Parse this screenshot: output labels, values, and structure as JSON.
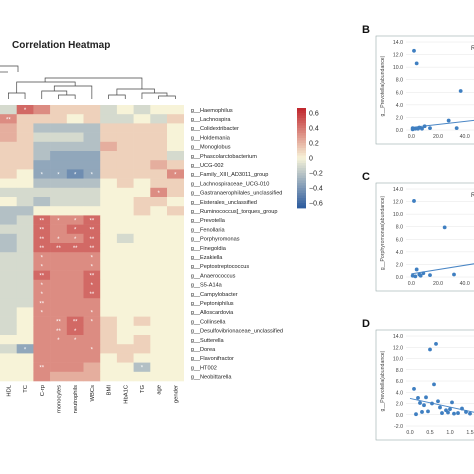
{
  "heatmap": {
    "title": "Correlation Heatmap",
    "columns": [
      "HDL",
      "TC",
      "C-rp",
      "monocytes",
      "neutrophils",
      "WBCs",
      "BMI",
      "HbA1C",
      "TG",
      "age",
      "gender"
    ],
    "rows": [
      "g__Haemophilus",
      "g__Lachnospira",
      "g__Colidextribacter",
      "g__Holdemania",
      "g__Monoglobus",
      "g__Phascolarctobacterium",
      "g__UCG-002",
      "g__Family_XIII_AD3011_group",
      "g__Lachnospiraceae_UCG-010",
      "g__Gastranaerophilales_unclassified",
      "g__Eisterales_unclassified",
      "g__Ruminococcus]_torques_group",
      "g__Prevotella",
      "g__Fenollaria",
      "g__Porphyromonas",
      "g__Finegoldia",
      "g__Ezakiella",
      "g__Peptostreptococcus",
      "g__Anaerococcus",
      "g__S5-A14a",
      "g__Campylobacter",
      "g__Peptoniphilus",
      "g__Alloscardovia",
      "g__Collinsella",
      "g__Desulfovibrionaceae_unclassified",
      "g__Sutterella",
      "g__Dorea",
      "g__Flavonifractor",
      "g__HT002",
      "g__Neobittarella"
    ],
    "values": [
      [
        -0.1,
        0.4,
        0.3,
        0.1,
        0.1,
        0.1,
        -0.1,
        0.0,
        -0.1,
        0.0,
        0.0
      ],
      [
        0.3,
        0.1,
        0.1,
        0.1,
        0.0,
        0.1,
        -0.1,
        -0.1,
        0.0,
        -0.1,
        0.1
      ],
      [
        0.2,
        0.1,
        -0.2,
        -0.2,
        -0.2,
        -0.2,
        0.1,
        0.1,
        0.1,
        0.1,
        0.0
      ],
      [
        0.2,
        0.1,
        -0.1,
        -0.1,
        -0.1,
        -0.2,
        0.1,
        0.1,
        0.1,
        0.1,
        0.0
      ],
      [
        0.1,
        0.1,
        -0.2,
        -0.2,
        -0.2,
        -0.2,
        0.2,
        0.1,
        0.1,
        0.1,
        0.0
      ],
      [
        0.1,
        0.1,
        -0.2,
        -0.3,
        -0.3,
        -0.3,
        0.1,
        0.1,
        0.1,
        0.1,
        -0.1
      ],
      [
        0.1,
        0.1,
        -0.3,
        -0.3,
        -0.3,
        -0.3,
        0.1,
        0.1,
        0.1,
        0.2,
        0.1
      ],
      [
        0.1,
        0.0,
        -0.3,
        -0.3,
        -0.4,
        -0.3,
        0.1,
        0.1,
        0.1,
        0.1,
        0.3
      ],
      [
        0.0,
        0.0,
        -0.2,
        -0.2,
        -0.2,
        -0.2,
        0.0,
        0.1,
        0.0,
        0.1,
        0.1
      ],
      [
        -0.1,
        -0.1,
        -0.1,
        -0.1,
        -0.1,
        -0.1,
        0.0,
        0.0,
        0.0,
        0.3,
        0.1
      ],
      [
        0.0,
        -0.1,
        -0.2,
        -0.1,
        -0.1,
        -0.1,
        0.0,
        0.0,
        0.1,
        0.1,
        0.0
      ],
      [
        -0.2,
        -0.2,
        0.0,
        0.0,
        0.0,
        0.0,
        0.0,
        0.0,
        0.1,
        0.0,
        0.1
      ],
      [
        -0.2,
        -0.1,
        0.4,
        0.3,
        0.3,
        0.4,
        0.0,
        0.0,
        0.0,
        0.0,
        0.0
      ],
      [
        -0.1,
        -0.1,
        0.4,
        0.3,
        0.4,
        0.4,
        0.0,
        0.0,
        0.0,
        0.0,
        0.0
      ],
      [
        -0.2,
        -0.1,
        0.4,
        0.3,
        0.3,
        0.4,
        0.0,
        -0.1,
        0.0,
        0.0,
        0.0
      ],
      [
        -0.2,
        -0.1,
        0.4,
        0.4,
        0.4,
        0.4,
        0.0,
        0.0,
        0.0,
        0.0,
        0.0
      ],
      [
        -0.1,
        -0.1,
        0.3,
        0.3,
        0.3,
        0.3,
        0.0,
        0.0,
        0.0,
        0.0,
        0.0
      ],
      [
        -0.1,
        -0.1,
        0.3,
        0.3,
        0.3,
        0.3,
        0.0,
        0.0,
        0.0,
        0.0,
        0.0
      ],
      [
        -0.1,
        -0.1,
        0.4,
        0.3,
        0.3,
        0.4,
        0.0,
        0.0,
        0.0,
        0.0,
        0.0
      ],
      [
        -0.1,
        -0.1,
        0.3,
        0.3,
        0.3,
        0.4,
        0.0,
        0.0,
        0.0,
        0.0,
        0.0
      ],
      [
        -0.1,
        -0.1,
        0.3,
        0.3,
        0.3,
        0.4,
        0.0,
        0.0,
        0.0,
        0.0,
        0.0
      ],
      [
        -0.1,
        -0.1,
        0.3,
        0.3,
        0.3,
        0.3,
        0.0,
        0.0,
        0.0,
        0.0,
        0.0
      ],
      [
        -0.1,
        0.0,
        0.3,
        0.3,
        0.3,
        0.3,
        0.0,
        0.0,
        0.0,
        0.0,
        0.0
      ],
      [
        -0.1,
        0.0,
        0.3,
        0.3,
        0.4,
        0.3,
        0.1,
        0.0,
        0.1,
        0.0,
        0.0
      ],
      [
        -0.1,
        0.0,
        0.3,
        0.3,
        0.4,
        0.3,
        0.1,
        0.0,
        0.0,
        0.0,
        0.0
      ],
      [
        0.0,
        0.0,
        0.3,
        0.3,
        0.3,
        0.3,
        0.1,
        0.0,
        0.1,
        0.0,
        0.0
      ],
      [
        -0.1,
        -0.3,
        0.3,
        0.3,
        0.3,
        0.3,
        0.1,
        0.1,
        0.1,
        0.0,
        0.0
      ],
      [
        0.0,
        0.0,
        0.3,
        0.3,
        0.3,
        0.3,
        0.0,
        0.1,
        0.0,
        0.0,
        0.0
      ],
      [
        0.0,
        0.0,
        0.3,
        0.3,
        0.3,
        0.2,
        0.0,
        0.0,
        -0.2,
        0.0,
        0.0
      ],
      [
        0.0,
        0.0,
        0.3,
        0.2,
        0.2,
        0.2,
        0.0,
        0.0,
        0.0,
        0.0,
        0.0
      ]
    ],
    "significance": [
      [
        "",
        "*",
        "",
        "",
        "",
        "",
        "",
        "",
        "",
        "",
        ""
      ],
      [
        "**",
        "",
        "",
        "",
        "",
        "",
        "",
        "",
        "",
        "",
        ""
      ],
      [
        "",
        "",
        "",
        "",
        "",
        "",
        "",
        "",
        "",
        "",
        ""
      ],
      [
        "",
        "",
        "",
        "",
        "",
        "",
        "",
        "",
        "",
        "",
        ""
      ],
      [
        "",
        "",
        "",
        "",
        "",
        "",
        "",
        "",
        "",
        "",
        ""
      ],
      [
        "",
        "",
        "",
        "",
        "",
        "",
        "",
        "",
        "",
        "",
        ""
      ],
      [
        "",
        "",
        "",
        "",
        "",
        "",
        "",
        "",
        "",
        "",
        ""
      ],
      [
        "",
        "",
        "*",
        "*",
        "*",
        "*",
        "",
        "",
        "",
        "",
        "*"
      ],
      [
        "",
        "",
        "",
        "",
        "",
        "",
        "",
        "",
        "",
        "",
        ""
      ],
      [
        "",
        "",
        "",
        "",
        "",
        "",
        "",
        "",
        "",
        "*",
        ""
      ],
      [
        "",
        "",
        "",
        "",
        "",
        "",
        "",
        "",
        "",
        "",
        ""
      ],
      [
        "",
        "",
        "",
        "",
        "",
        "",
        "",
        "",
        "",
        "",
        ""
      ],
      [
        "",
        "",
        "**",
        "*",
        "*",
        "**",
        "",
        "",
        "",
        "",
        ""
      ],
      [
        "",
        "",
        "**",
        "",
        "*",
        "**",
        "",
        "",
        "",
        "",
        ""
      ],
      [
        "",
        "",
        "**",
        "*",
        "*",
        "**",
        "",
        "",
        "",
        "",
        ""
      ],
      [
        "",
        "",
        "**",
        "**",
        "**",
        "**",
        "",
        "",
        "",
        "",
        ""
      ],
      [
        "",
        "",
        "*",
        "",
        "",
        "*",
        "",
        "",
        "",
        "",
        ""
      ],
      [
        "",
        "",
        "*",
        "",
        "",
        "*",
        "",
        "",
        "",
        "",
        ""
      ],
      [
        "",
        "",
        "**",
        "",
        "",
        "**",
        "",
        "",
        "",
        "",
        ""
      ],
      [
        "",
        "",
        "*",
        "",
        "",
        "*",
        "",
        "",
        "",
        "",
        ""
      ],
      [
        "",
        "",
        "*",
        "",
        "",
        "**",
        "",
        "",
        "",
        "",
        ""
      ],
      [
        "",
        "",
        "**",
        "",
        "",
        "",
        "",
        "",
        "",
        "",
        ""
      ],
      [
        "",
        "",
        "*",
        "",
        "",
        "*",
        "",
        "",
        "",
        "",
        ""
      ],
      [
        "",
        "",
        "",
        "**",
        "**",
        "*",
        "",
        "",
        "",
        "",
        ""
      ],
      [
        "",
        "",
        "",
        "**",
        "*",
        "",
        "",
        "",
        "",
        "",
        ""
      ],
      [
        "",
        "",
        "",
        "*",
        "*",
        "",
        "",
        "",
        "",
        "",
        ""
      ],
      [
        "",
        "*",
        "",
        "",
        "",
        "*",
        "",
        "",
        "",
        "",
        ""
      ],
      [
        "",
        "",
        "",
        "",
        "",
        "",
        "",
        "",
        "",
        "",
        ""
      ],
      [
        "",
        "",
        "**",
        "",
        "",
        "",
        "",
        "",
        "*",
        "",
        ""
      ],
      [
        "",
        "",
        "",
        "",
        "",
        "",
        "",
        "",
        "",
        "",
        ""
      ]
    ],
    "colorbar": {
      "ticks": [
        "0.6",
        "0.4",
        "0.2",
        "0",
        "−0.2",
        "−0.4",
        "−0.6"
      ],
      "min": -0.6,
      "max": 0.6
    },
    "colors": {
      "negative": "#2b5a9e",
      "neutral": "#f7f3d8",
      "positive": "#c0242b"
    }
  },
  "panels": [
    {
      "label": "B",
      "ylabel": "g__Prevotella(abundance)",
      "yticks": [
        "14.0",
        "12.0",
        "10.0",
        "8.0",
        "6.0",
        "4.0",
        "2.0",
        "0.0"
      ],
      "ytick_values": [
        14,
        12,
        10,
        8,
        6,
        4,
        2,
        0
      ],
      "xticks": [
        "0.0",
        "20.0",
        "40.0"
      ],
      "xtick_values": [
        0,
        20,
        40
      ],
      "annotation": "R",
      "xlim": [
        -4,
        50
      ],
      "ylim": [
        0,
        14
      ],
      "points": [
        [
          1,
          0.3
        ],
        [
          2,
          12.6
        ],
        [
          3,
          0.2
        ],
        [
          4,
          10.6
        ],
        [
          6,
          0.4
        ],
        [
          8,
          0.2
        ],
        [
          10,
          0.6
        ],
        [
          14,
          0.3
        ],
        [
          28,
          1.5
        ],
        [
          34,
          0.3
        ],
        [
          37,
          6.2
        ],
        [
          1,
          0.1
        ],
        [
          5,
          0.2
        ]
      ],
      "fit": [
        [
          0,
          0.4
        ],
        [
          50,
          1.6
        ]
      ]
    },
    {
      "label": "C",
      "ylabel": "g__Porphyromonas(abundance)",
      "yticks": [
        "14.0",
        "12.0",
        "10.0",
        "8.0",
        "6.0",
        "4.0",
        "2.0",
        "0.0"
      ],
      "ytick_values": [
        14,
        12,
        10,
        8,
        6,
        4,
        2,
        0
      ],
      "xticks": [
        "0.0",
        "20.0",
        "40.0"
      ],
      "xtick_values": [
        0,
        20,
        40
      ],
      "annotation": "R",
      "xlim": [
        -4,
        50
      ],
      "ylim": [
        0,
        14
      ],
      "points": [
        [
          1,
          0.2
        ],
        [
          2,
          12.1
        ],
        [
          4,
          1.2
        ],
        [
          6,
          0.4
        ],
        [
          9,
          0.6
        ],
        [
          14,
          0.3
        ],
        [
          25,
          7.9
        ],
        [
          32,
          0.4
        ],
        [
          3,
          0.1
        ],
        [
          7,
          0.2
        ]
      ],
      "fit": [
        [
          0,
          0.5
        ],
        [
          50,
          2.2
        ]
      ]
    },
    {
      "label": "D",
      "ylabel": "g__Prevotella(abundance)",
      "yticks": [
        "14.0",
        "12.0",
        "10.0",
        "8.0",
        "6.0",
        "4.0",
        "2.0",
        "0.0",
        "-2.0"
      ],
      "ytick_values": [
        14,
        12,
        10,
        8,
        6,
        4,
        2,
        0,
        -2
      ],
      "xticks": [
        "0.0",
        "0.5",
        "1.0",
        "1.5"
      ],
      "xtick_values": [
        0,
        0.5,
        1.0,
        1.5
      ],
      "annotation": "",
      "xlim": [
        -0.1,
        1.7
      ],
      "ylim": [
        -2,
        14
      ],
      "points": [
        [
          0.1,
          4.6
        ],
        [
          0.2,
          3.0
        ],
        [
          0.25,
          2.1
        ],
        [
          0.3,
          0.5
        ],
        [
          0.35,
          1.7
        ],
        [
          0.4,
          3.1
        ],
        [
          0.45,
          0.6
        ],
        [
          0.5,
          11.6
        ],
        [
          0.55,
          2.0
        ],
        [
          0.6,
          5.4
        ],
        [
          0.65,
          12.6
        ],
        [
          0.7,
          2.4
        ],
        [
          0.75,
          1.3
        ],
        [
          0.8,
          0.3
        ],
        [
          0.9,
          0.8
        ],
        [
          1.0,
          1.0
        ],
        [
          1.05,
          2.2
        ],
        [
          1.1,
          0.2
        ],
        [
          1.2,
          0.3
        ],
        [
          1.3,
          1.1
        ],
        [
          1.4,
          0.5
        ],
        [
          1.5,
          0.2
        ],
        [
          0.15,
          0.1
        ],
        [
          0.95,
          0.4
        ]
      ],
      "fit": [
        [
          0,
          2.9
        ],
        [
          1.7,
          0.3
        ]
      ]
    }
  ]
}
